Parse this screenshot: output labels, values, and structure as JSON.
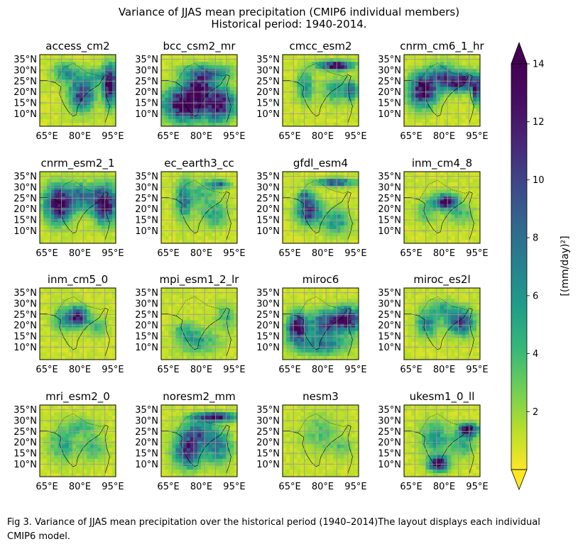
{
  "figure": {
    "title_line1": "Variance of JJAS mean precipitation (CMIP6 individual members)",
    "title_line2": "Historical period: 1940-2014."
  },
  "caption": {
    "text": "Fig 3. Variance of JJAS mean precipitation over the historical period (1940–2014)The layout displays each individual CMIP6 model."
  },
  "chart_data": {
    "type": "heatmap",
    "title": "Variance of JJAS mean precipitation (CMIP6 individual members) Historical period: 1940-2014.",
    "colormap": "viridis_r",
    "colorbar": {
      "label": "[(mm/day)²]",
      "ticks": [
        2,
        4,
        6,
        8,
        10,
        12,
        14
      ],
      "tick_labels": [
        "2",
        "4",
        "6",
        "8",
        "10",
        "12",
        "14"
      ],
      "range": [
        0,
        14
      ],
      "extend": "both"
    },
    "x_ticks": [
      "65°E",
      "80°E",
      "95°E"
    ],
    "y_ticks": [
      "35°N",
      "30°N",
      "25°N",
      "20°N",
      "15°N",
      "10°N"
    ],
    "grid": true,
    "panels": [
      {
        "model": "access_cm2",
        "blobs": [
          [
            0.55,
            0.55,
            0.18,
            0.25,
            10
          ],
          [
            0.92,
            0.42,
            0.1,
            0.3,
            13
          ],
          [
            0.35,
            0.25,
            0.2,
            0.15,
            5
          ],
          [
            0.75,
            0.3,
            0.15,
            0.12,
            4
          ]
        ]
      },
      {
        "model": "bcc_csm2_mr",
        "blobs": [
          [
            0.3,
            0.7,
            0.28,
            0.25,
            14
          ],
          [
            0.75,
            0.7,
            0.25,
            0.25,
            12
          ],
          [
            0.6,
            0.25,
            0.35,
            0.12,
            7
          ],
          [
            0.5,
            0.45,
            0.2,
            0.2,
            10
          ]
        ]
      },
      {
        "model": "cmcc_esm2",
        "blobs": [
          [
            0.7,
            0.15,
            0.25,
            0.07,
            13
          ],
          [
            0.3,
            0.45,
            0.12,
            0.25,
            5
          ],
          [
            0.7,
            0.5,
            0.2,
            0.2,
            4
          ],
          [
            0.9,
            0.5,
            0.1,
            0.15,
            6
          ]
        ]
      },
      {
        "model": "cnrm_cm6_1_hr",
        "blobs": [
          [
            0.25,
            0.5,
            0.2,
            0.25,
            13
          ],
          [
            0.75,
            0.38,
            0.25,
            0.15,
            12
          ],
          [
            0.5,
            0.3,
            0.2,
            0.2,
            6
          ],
          [
            0.95,
            0.5,
            0.06,
            0.2,
            10
          ]
        ]
      },
      {
        "model": "cnrm_esm2_1",
        "blobs": [
          [
            0.25,
            0.45,
            0.2,
            0.28,
            13
          ],
          [
            0.85,
            0.45,
            0.18,
            0.28,
            13
          ],
          [
            0.55,
            0.35,
            0.2,
            0.2,
            7
          ]
        ]
      },
      {
        "model": "ec_earth3_cc",
        "blobs": [
          [
            0.3,
            0.4,
            0.12,
            0.3,
            6
          ],
          [
            0.7,
            0.6,
            0.2,
            0.2,
            4
          ],
          [
            0.75,
            0.18,
            0.15,
            0.06,
            8
          ],
          [
            0.55,
            0.3,
            0.25,
            0.2,
            3
          ]
        ]
      },
      {
        "model": "gfdl_esm4",
        "blobs": [
          [
            0.7,
            0.15,
            0.3,
            0.06,
            9
          ],
          [
            0.35,
            0.55,
            0.18,
            0.2,
            10
          ],
          [
            0.7,
            0.7,
            0.2,
            0.2,
            5
          ],
          [
            0.3,
            0.35,
            0.1,
            0.1,
            6
          ]
        ]
      },
      {
        "model": "inm_cm4_8",
        "blobs": [
          [
            0.55,
            0.42,
            0.18,
            0.12,
            12
          ],
          [
            0.3,
            0.55,
            0.15,
            0.2,
            3
          ],
          [
            0.75,
            0.6,
            0.2,
            0.15,
            3
          ]
        ]
      },
      {
        "model": "inm_cm5_0",
        "blobs": [
          [
            0.5,
            0.4,
            0.15,
            0.15,
            12
          ],
          [
            0.3,
            0.45,
            0.15,
            0.2,
            4
          ],
          [
            0.75,
            0.55,
            0.15,
            0.15,
            3
          ]
        ]
      },
      {
        "model": "mpi_esm1_2_lr",
        "blobs": [
          [
            0.5,
            0.75,
            0.3,
            0.2,
            4
          ],
          [
            0.85,
            0.4,
            0.15,
            0.2,
            3
          ],
          [
            0.3,
            0.6,
            0.15,
            0.15,
            3
          ]
        ]
      },
      {
        "model": "miroc6",
        "blobs": [
          [
            0.2,
            0.55,
            0.15,
            0.22,
            13
          ],
          [
            0.55,
            0.5,
            0.2,
            0.2,
            9
          ],
          [
            0.85,
            0.45,
            0.2,
            0.2,
            12
          ],
          [
            0.5,
            0.8,
            0.4,
            0.15,
            6
          ]
        ]
      },
      {
        "model": "miroc_es2l",
        "blobs": [
          [
            0.75,
            0.48,
            0.2,
            0.2,
            9
          ],
          [
            0.3,
            0.5,
            0.15,
            0.2,
            6
          ],
          [
            0.5,
            0.3,
            0.2,
            0.15,
            4
          ]
        ]
      },
      {
        "model": "mri_esm2_0",
        "blobs": [
          [
            0.3,
            0.55,
            0.2,
            0.25,
            4
          ],
          [
            0.7,
            0.6,
            0.2,
            0.2,
            3
          ],
          [
            0.55,
            0.3,
            0.25,
            0.15,
            3
          ]
        ]
      },
      {
        "model": "noresm2_mm",
        "blobs": [
          [
            0.7,
            0.17,
            0.3,
            0.07,
            13
          ],
          [
            0.35,
            0.65,
            0.2,
            0.25,
            10
          ],
          [
            0.75,
            0.6,
            0.2,
            0.25,
            6
          ],
          [
            0.5,
            0.4,
            0.25,
            0.2,
            7
          ]
        ]
      },
      {
        "model": "nesm3",
        "blobs": [
          [
            0.5,
            0.4,
            0.3,
            0.3,
            2.5
          ],
          [
            0.8,
            0.6,
            0.15,
            0.15,
            2
          ]
        ]
      },
      {
        "model": "ukesm1_0_ll",
        "blobs": [
          [
            0.85,
            0.35,
            0.15,
            0.1,
            12
          ],
          [
            0.45,
            0.82,
            0.15,
            0.12,
            12
          ],
          [
            0.4,
            0.45,
            0.2,
            0.25,
            5
          ],
          [
            0.75,
            0.55,
            0.2,
            0.2,
            4
          ]
        ]
      }
    ]
  }
}
